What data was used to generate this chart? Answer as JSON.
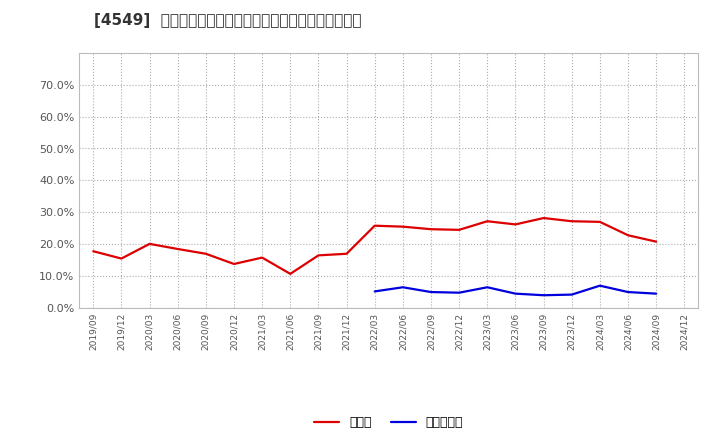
{
  "title": "[4549]  現頂金、有利子負債の総資産に対する比率の推移",
  "x_labels": [
    "2019/09",
    "2019/12",
    "2020/03",
    "2020/06",
    "2020/09",
    "2020/12",
    "2021/03",
    "2021/06",
    "2021/09",
    "2021/12",
    "2022/03",
    "2022/06",
    "2022/09",
    "2022/12",
    "2023/03",
    "2023/06",
    "2023/09",
    "2023/12",
    "2024/03",
    "2024/06",
    "2024/09",
    "2024/12"
  ],
  "cash_ratio": [
    0.178,
    0.155,
    0.201,
    0.185,
    0.17,
    0.138,
    0.158,
    0.107,
    0.165,
    0.17,
    0.258,
    0.255,
    0.247,
    0.245,
    0.272,
    0.262,
    0.282,
    0.272,
    0.27,
    0.228,
    0.208,
    null
  ],
  "debt_ratio": [
    null,
    null,
    null,
    null,
    null,
    null,
    null,
    null,
    null,
    null,
    0.052,
    0.065,
    0.05,
    0.048,
    0.065,
    0.045,
    0.04,
    0.042,
    0.07,
    0.05,
    0.045,
    null
  ],
  "cash_color": "#dd0000",
  "debt_color": "#0000dd",
  "legend_cash": "現頂金",
  "legend_debt": "有利子負債",
  "ylim": [
    0.0,
    0.8
  ],
  "yticks": [
    0.0,
    0.1,
    0.2,
    0.3,
    0.4,
    0.5,
    0.6,
    0.7
  ],
  "background_color": "#ffffff",
  "plot_bg_color": "#ffffff",
  "grid_color": "#999999",
  "title_fontsize": 11,
  "line_width": 1.6,
  "tick_label_color": "#555555",
  "spine_color": "#bbbbbb"
}
